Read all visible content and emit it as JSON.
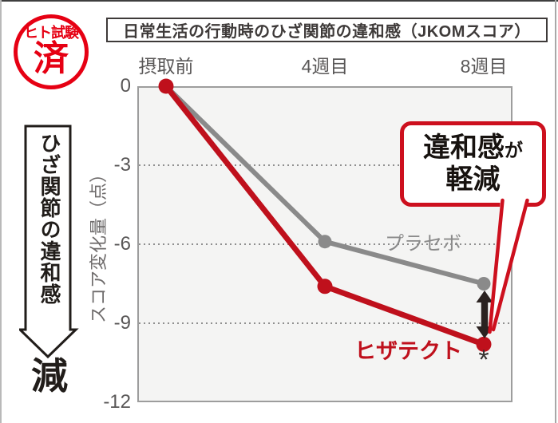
{
  "badge": {
    "top": "ヒト試験",
    "main": "済",
    "color": "#e60013"
  },
  "sidebar": {
    "arrow_label": "ひざ関節の違和感",
    "result_label": "減"
  },
  "chart_data": {
    "type": "line",
    "title": "日常生活の行動時のひざ関節の違和感（JKOMスコア）",
    "categories": [
      "摂取前",
      "4週目",
      "8週目"
    ],
    "series": [
      {
        "name": "プラセボ",
        "color": "#8a8a8a",
        "stroke_width": 6,
        "point_radius": 8.5,
        "values": [
          0,
          -5.9,
          -7.5
        ]
      },
      {
        "name": "ヒザテクト",
        "color": "#bf101c",
        "stroke_width": 7,
        "point_radius": 9.5,
        "values": [
          0,
          -7.6,
          -9.8
        ]
      }
    ],
    "xlabel": "",
    "ylabel": "スコア変化量（点）",
    "ylim": [
      -12,
      0
    ],
    "yticks": [
      0,
      -3,
      -6,
      -9,
      -12
    ],
    "grid_values": [
      -3,
      -6,
      -9
    ],
    "grid_style": "dotted-horizontal",
    "legend_position": "inline-labels-next-to-lines",
    "annotations": {
      "significance_marker": "*",
      "callout_text": "違和感が軽減",
      "difference_arrow": "vertical double-headed arrow between series at 8週目"
    }
  },
  "callout": {
    "line1_main": "違和感",
    "line1_suffix": "が",
    "line2": "軽減",
    "border_color": "#cd101e"
  }
}
